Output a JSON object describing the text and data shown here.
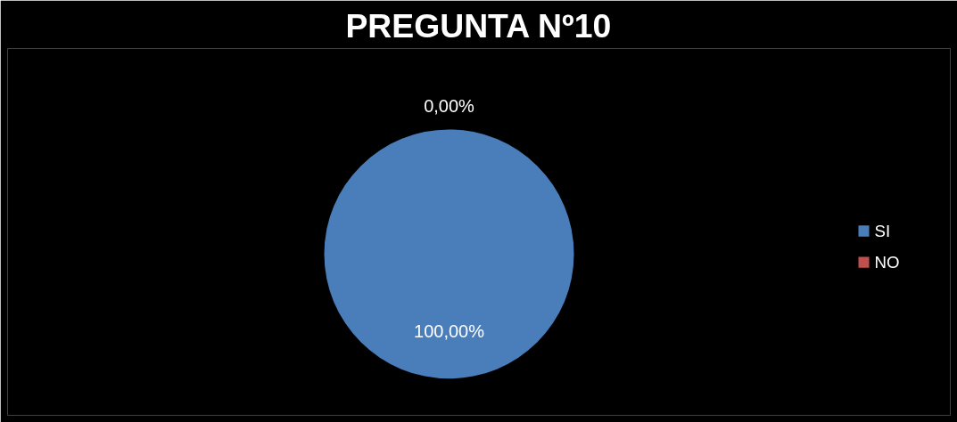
{
  "chart_data": {
    "type": "pie",
    "title": "PREGUNTA Nº10",
    "categories": [
      "SI",
      "NO"
    ],
    "values": [
      100,
      0
    ],
    "colors": [
      "#4a7ebb",
      "#c0504d"
    ],
    "value_labels": [
      "100,00%",
      "0,00%"
    ],
    "legend": "right"
  }
}
